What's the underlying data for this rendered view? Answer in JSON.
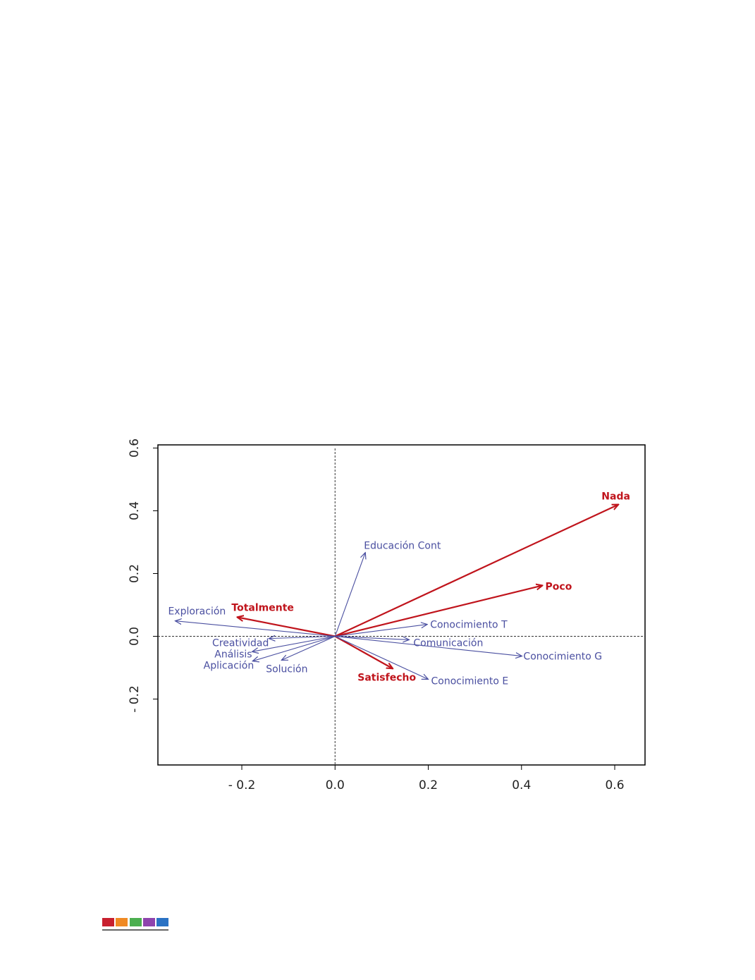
{
  "chart_data": {
    "type": "biplot",
    "xlim": [
      -0.38,
      0.665
    ],
    "ylim": [
      -0.41,
      0.61
    ],
    "xticks": [
      {
        "value": -0.2,
        "label": "- 0.2"
      },
      {
        "value": 0,
        "label": "0.0"
      },
      0.2,
      0.4,
      0.6
    ],
    "yticks": [
      {
        "value": -0.2,
        "label": "- 0.2"
      },
      {
        "value": 0,
        "label": "0.0"
      },
      0.2,
      0.4,
      0.6
    ],
    "series": [
      {
        "color": "#c0141c",
        "bold": true,
        "labels": [
          "Nada",
          "Poco",
          "Totalmente",
          "Satisfecho"
        ],
        "x": [
          0.608,
          0.445,
          -0.21,
          0.124
        ],
        "y": [
          0.42,
          0.162,
          0.061,
          -0.103
        ]
      },
      {
        "color": "#4a4fa0",
        "bold": false,
        "labels": [
          "Educación Cont",
          "Exploración",
          "Conocimiento T",
          "Comunicación",
          "Conocimiento G",
          "Conocimiento E",
          "Creatividad",
          "Análisis",
          "Aplicación",
          "Solución"
        ],
        "x": [
          0.065,
          -0.343,
          0.198,
          0.159,
          0.401,
          0.2,
          -0.142,
          -0.178,
          -0.177,
          -0.115
        ],
        "y": [
          0.267,
          0.049,
          0.038,
          -0.011,
          -0.063,
          -0.137,
          -0.007,
          -0.049,
          -0.079,
          -0.076
        ]
      }
    ]
  }
}
